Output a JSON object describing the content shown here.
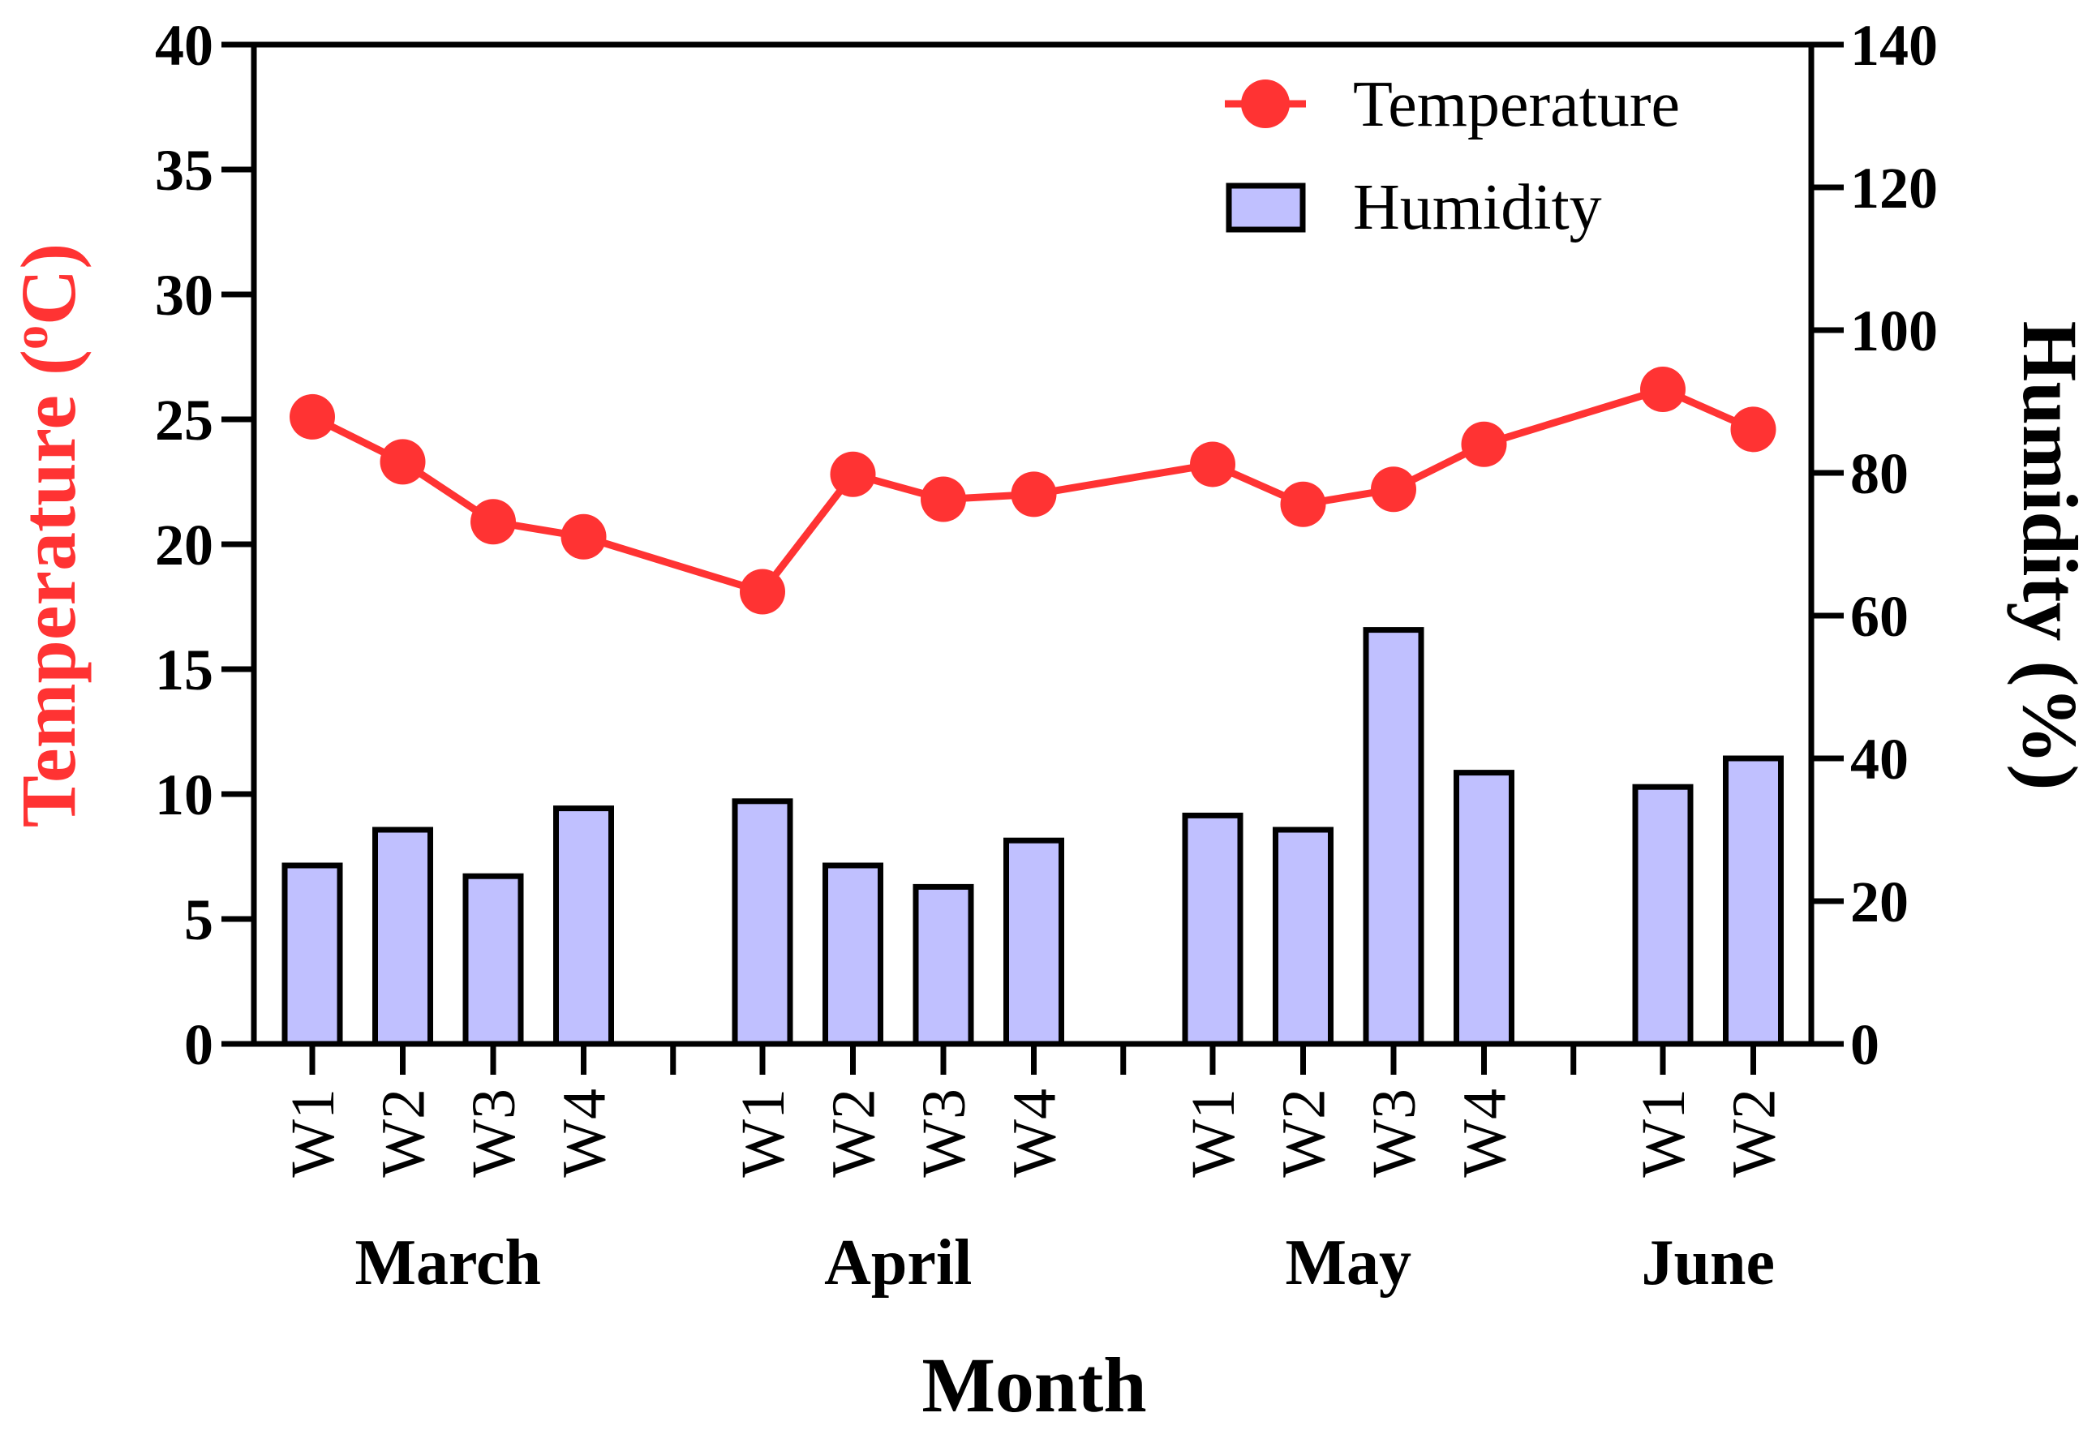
{
  "chart_data": {
    "type": "bar+line",
    "categories": [
      "W1",
      "W2",
      "W3",
      "W4",
      "W1",
      "W2",
      "W3",
      "W4",
      "W1",
      "W2",
      "W3",
      "W4",
      "W1",
      "W2"
    ],
    "groups": [
      {
        "label": "March",
        "weeks": [
          "W1",
          "W2",
          "W3",
          "W4"
        ]
      },
      {
        "label": "April",
        "weeks": [
          "W1",
          "W2",
          "W3",
          "W4"
        ]
      },
      {
        "label": "May",
        "weeks": [
          "W1",
          "W2",
          "W3",
          "W4"
        ]
      },
      {
        "label": "June",
        "weeks": [
          "W1",
          "W2"
        ]
      }
    ],
    "series": [
      {
        "name": "Temperature",
        "kind": "line",
        "axis": "left",
        "color": "#ff3333",
        "values": [
          25.1,
          23.3,
          20.9,
          20.3,
          18.1,
          22.8,
          21.8,
          22.0,
          23.2,
          21.6,
          22.2,
          24.0,
          26.2,
          24.6
        ]
      },
      {
        "name": "Humidity",
        "kind": "bar",
        "axis": "right",
        "color": "#c0c0ff",
        "values": [
          25,
          30,
          23.5,
          33,
          34,
          25,
          22,
          28.5,
          32,
          30,
          58,
          38,
          36,
          40
        ]
      }
    ],
    "title": "",
    "xlabel": "Month",
    "ylabel_left": "Temperature (°C)",
    "ylabel_left_parts": {
      "main": "Temperature (",
      "sup": "o",
      "unit": "C)"
    },
    "ylabel_right": "Humidity (%)",
    "ylim_left": [
      0,
      40
    ],
    "yticks_left": [
      "0",
      "5",
      "10",
      "15",
      "20",
      "25",
      "30",
      "35",
      "40"
    ],
    "ylim_right": [
      0,
      140
    ],
    "yticks_right": [
      "0",
      "20",
      "40",
      "60",
      "80",
      "100",
      "120",
      "140"
    ],
    "legend": {
      "placement": "top-right",
      "entries": [
        "Temperature",
        "Humidity"
      ]
    },
    "grid": false
  }
}
